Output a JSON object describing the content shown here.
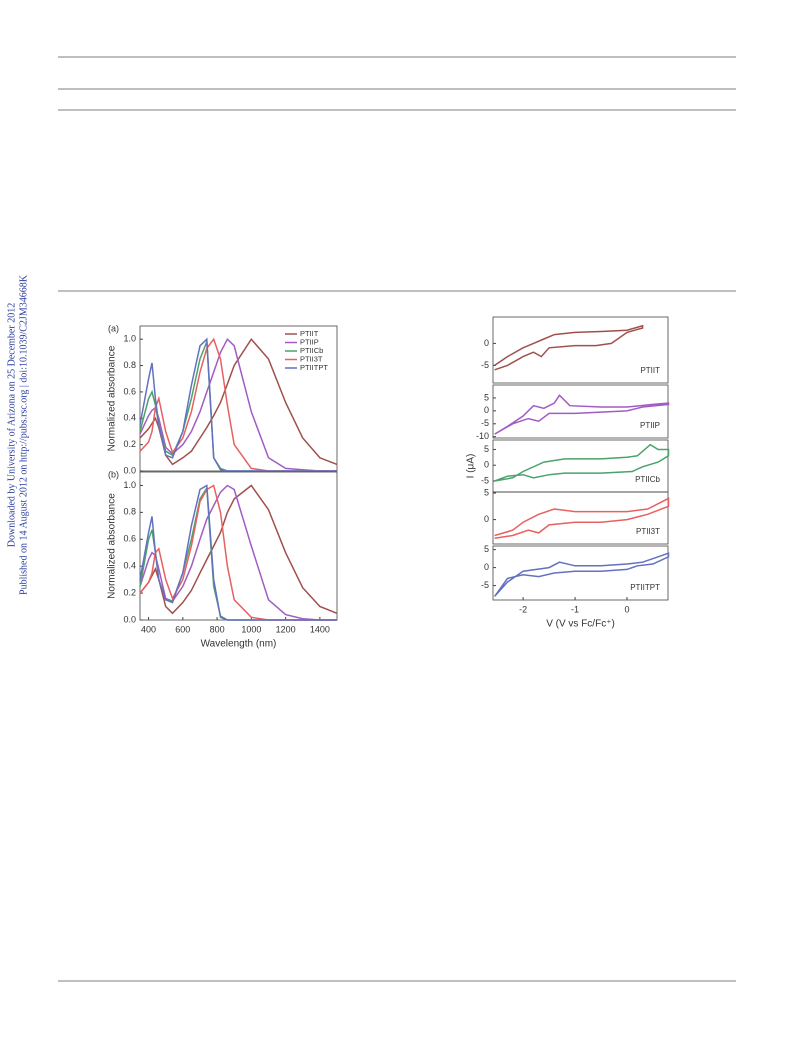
{
  "sidebar": [
    "Downloaded by University of Arizona on 25 December 2012",
    "Published on 14 August 2012 on http://pubs.rsc.org | doi:10.1039/C2JM34668K"
  ],
  "chart_data": [
    {
      "type": "line",
      "title": "(a)",
      "ylabel": "Normalized absorbance",
      "legend": "upper right",
      "x": [
        350,
        400,
        420,
        440,
        460,
        500,
        540,
        600,
        650,
        700,
        740,
        780,
        820,
        860,
        900,
        1000,
        1100,
        1200,
        1300,
        1400,
        1500
      ],
      "xlim": [
        350,
        1500
      ],
      "ylim": [
        0,
        1.1
      ],
      "yticks": [
        {
          "value": 0,
          "label": "0.0"
        },
        0.2,
        0.4,
        0.6,
        0.8,
        {
          "value": 1,
          "label": "1.0"
        }
      ],
      "series": [
        {
          "name": "PTIIT",
          "color": "#a0504c",
          "values": [
            0.25,
            0.32,
            0.36,
            0.4,
            0.33,
            0.12,
            0.05,
            0.1,
            0.15,
            0.25,
            0.33,
            0.42,
            0.52,
            0.66,
            0.8,
            1.0,
            0.85,
            0.52,
            0.25,
            0.1,
            0.05
          ]
        },
        {
          "name": "PTIIP",
          "color": "#a15cc4",
          "values": [
            0.28,
            0.42,
            0.46,
            0.48,
            0.4,
            0.18,
            0.13,
            0.2,
            0.3,
            0.45,
            0.6,
            0.75,
            0.9,
            1.0,
            0.95,
            0.45,
            0.1,
            0.02,
            0.01,
            0,
            0
          ]
        },
        {
          "name": "PTIICb",
          "color": "#4aa36a",
          "values": [
            0.3,
            0.55,
            0.6,
            0.5,
            0.35,
            0.15,
            0.12,
            0.3,
            0.55,
            0.85,
            0.98,
            0.1,
            0.02,
            0,
            0,
            0,
            0,
            0,
            0,
            0,
            0
          ]
        },
        {
          "name": "PTII3T",
          "color": "#e86060",
          "values": [
            0.15,
            0.22,
            0.3,
            0.48,
            0.55,
            0.3,
            0.14,
            0.25,
            0.45,
            0.75,
            0.93,
            1.0,
            0.85,
            0.5,
            0.2,
            0.02,
            0,
            0,
            0,
            0,
            0
          ]
        },
        {
          "name": "PTIITPT",
          "color": "#6470c0",
          "values": [
            0.35,
            0.7,
            0.82,
            0.55,
            0.35,
            0.12,
            0.1,
            0.3,
            0.65,
            0.95,
            1.0,
            0.1,
            0.01,
            0,
            0,
            0,
            0,
            0,
            0,
            0,
            0
          ]
        }
      ]
    },
    {
      "type": "line",
      "title": "(b)",
      "ylabel": "Normalized absorbance",
      "xlabel": "Wavelength (nm)",
      "x": [
        350,
        400,
        420,
        440,
        460,
        500,
        540,
        600,
        650,
        700,
        740,
        780,
        820,
        860,
        900,
        1000,
        1100,
        1200,
        1300,
        1400,
        1500
      ],
      "xlim": [
        350,
        1500
      ],
      "ylim": [
        0,
        1.1
      ],
      "xticks": [
        400,
        600,
        800,
        1000,
        1200,
        1400
      ],
      "yticks": [
        {
          "value": 0,
          "label": "0.0"
        },
        0.2,
        0.4,
        0.6,
        0.8,
        {
          "value": 1,
          "label": "1.0"
        }
      ],
      "series": [
        {
          "color": "#a0504c",
          "values": [
            0.2,
            0.28,
            0.33,
            0.38,
            0.3,
            0.1,
            0.05,
            0.13,
            0.22,
            0.35,
            0.45,
            0.55,
            0.65,
            0.8,
            0.9,
            1.0,
            0.82,
            0.5,
            0.24,
            0.1,
            0.05
          ]
        },
        {
          "color": "#a15cc4",
          "values": [
            0.25,
            0.45,
            0.5,
            0.48,
            0.38,
            0.16,
            0.14,
            0.25,
            0.4,
            0.6,
            0.75,
            0.85,
            0.95,
            1.0,
            0.97,
            0.55,
            0.15,
            0.04,
            0.01,
            0,
            0
          ]
        },
        {
          "color": "#4aa36a",
          "values": [
            0.25,
            0.6,
            0.67,
            0.5,
            0.3,
            0.15,
            0.14,
            0.35,
            0.6,
            0.9,
            0.98,
            0.25,
            0.03,
            0,
            0,
            0,
            0,
            0,
            0,
            0,
            0
          ]
        },
        {
          "color": "#e86060",
          "values": [
            0.2,
            0.28,
            0.35,
            0.5,
            0.53,
            0.3,
            0.16,
            0.3,
            0.55,
            0.88,
            0.97,
            1.0,
            0.8,
            0.4,
            0.15,
            0.02,
            0,
            0,
            0,
            0,
            0
          ]
        },
        {
          "color": "#6470c0",
          "values": [
            0.3,
            0.65,
            0.77,
            0.5,
            0.3,
            0.15,
            0.13,
            0.35,
            0.7,
            0.97,
            1.0,
            0.3,
            0.02,
            0,
            0,
            0,
            0,
            0,
            0,
            0,
            0
          ]
        }
      ]
    },
    {
      "type": "line",
      "legend": "lower right",
      "xlim": [
        -2.58,
        0.79
      ],
      "ylim": [
        -9,
        6
      ],
      "yticks": [
        0,
        -5
      ],
      "x": [
        -2.55,
        -2.3,
        -2.0,
        -1.8,
        -1.6,
        -1.4,
        -1.0,
        -0.5,
        0,
        0.3,
        0.3,
        0,
        -0.3,
        -0.6,
        -1.0,
        -1.5,
        -1.65,
        -1.8,
        -2.0,
        -2.3,
        -2.55
      ],
      "series": [
        {
          "name": "PTIIT",
          "color": "#a0504c",
          "values": [
            -5,
            -3,
            -1,
            0,
            1,
            2,
            2.5,
            2.7,
            3,
            4,
            3.5,
            2.5,
            0,
            -0.5,
            -0.5,
            -1,
            -3,
            -2,
            -3,
            -5,
            -6
          ]
        }
      ]
    },
    {
      "type": "line",
      "legend": "lower right",
      "xlim": [
        -2.58,
        0.79
      ],
      "ylim": [
        -10.5,
        10
      ],
      "yticks": [
        5,
        0,
        -5,
        -10
      ],
      "x": [
        -2.55,
        -2.3,
        -2.0,
        -1.8,
        -1.6,
        -1.4,
        -1.3,
        -1.1,
        -0.5,
        0,
        0.5,
        0.8,
        0.8,
        0.3,
        0,
        -0.5,
        -1.0,
        -1.5,
        -1.7,
        -1.9,
        -2.2,
        -2.55
      ],
      "series": [
        {
          "name": "PTIIP",
          "color": "#a15cc4",
          "values": [
            -9,
            -6,
            -2,
            2,
            1,
            3,
            6,
            2,
            1.5,
            1.5,
            2.5,
            3,
            2.5,
            1.5,
            0,
            -0.5,
            -1,
            -1,
            -4,
            -3,
            -5,
            -9
          ]
        }
      ]
    },
    {
      "type": "line",
      "legend": "lower right",
      "ylabel": "I (μA)",
      "xlim": [
        -2.58,
        0.79
      ],
      "ylim": [
        -8.5,
        8
      ],
      "yticks": [
        5,
        0,
        -5
      ],
      "x": [
        -2.55,
        -2.2,
        -2.0,
        -1.6,
        -1.2,
        -0.5,
        0,
        0.2,
        0.45,
        0.6,
        0.8,
        0.8,
        0.6,
        0.3,
        0.1,
        -0.5,
        -1.2,
        -1.5,
        -1.8,
        -2.0,
        -2.3,
        -2.55
      ],
      "series": [
        {
          "name": "PTIICb",
          "color": "#4aa36a",
          "values": [
            -5,
            -4,
            -2,
            1,
            2,
            2,
            2.5,
            3,
            6.5,
            5,
            5,
            3,
            1,
            -0.5,
            -2,
            -2.5,
            -2.5,
            -3,
            -4,
            -3,
            -3.5,
            -5
          ]
        }
      ]
    },
    {
      "type": "line",
      "legend": "lower right",
      "xlim": [
        -2.58,
        0.79
      ],
      "ylim": [
        -4.6,
        5.2
      ],
      "yticks": [
        5,
        0
      ],
      "x": [
        -2.55,
        -2.2,
        -2.0,
        -1.7,
        -1.4,
        -1.0,
        -0.5,
        0,
        0.4,
        0.8,
        0.8,
        0.4,
        0,
        -0.5,
        -1.0,
        -1.5,
        -1.7,
        -1.9,
        -2.2,
        -2.55
      ],
      "series": [
        {
          "name": "PTII3T",
          "color": "#e86060",
          "values": [
            -3,
            -2,
            -0.5,
            1,
            2,
            1.5,
            1.5,
            1.5,
            2,
            4,
            2.5,
            1,
            0,
            -0.5,
            -0.5,
            -1,
            -2.5,
            -2,
            -3,
            -3.5
          ]
        }
      ]
    },
    {
      "type": "line",
      "legend": "lower right",
      "xlabel": "V (V vs Fc/Fc⁺)",
      "xlim": [
        -2.58,
        0.79
      ],
      "ylim": [
        -9,
        6
      ],
      "yticks": [
        5,
        0,
        -5
      ],
      "xticks": [
        -2,
        -1,
        0
      ],
      "x": [
        -2.55,
        -2.3,
        -2.0,
        -1.5,
        -1.3,
        -1.0,
        -0.5,
        0,
        0.3,
        0.6,
        0.8,
        0.8,
        0.5,
        0.2,
        0,
        -0.5,
        -1.0,
        -1.4,
        -1.7,
        -2.0,
        -2.3,
        -2.55
      ],
      "series": [
        {
          "name": "PTIITPT",
          "color": "#6470c0",
          "values": [
            -8,
            -4,
            -1,
            0,
            1.5,
            0.5,
            0.5,
            1,
            1.5,
            3,
            4,
            3,
            1,
            0.5,
            -0.5,
            -1,
            -1,
            -1.5,
            -2.5,
            -2,
            -3,
            -8
          ]
        }
      ]
    }
  ]
}
